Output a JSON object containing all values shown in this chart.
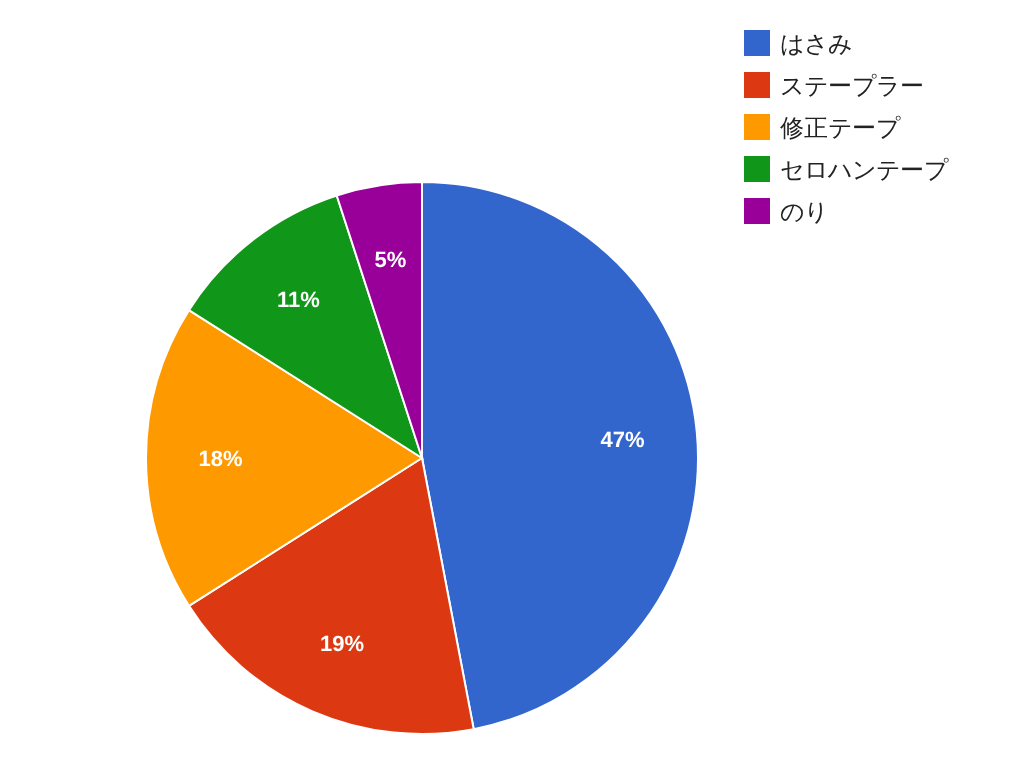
{
  "chart_data": {
    "type": "pie",
    "categories": [
      "はさみ",
      "ステープラー",
      "修正テープ",
      "セロハンテープ",
      "のり"
    ],
    "values": [
      47,
      19,
      18,
      11,
      5
    ],
    "colors": [
      "#3366cc",
      "#dc3912",
      "#ff9900",
      "#109618",
      "#990099"
    ],
    "value_labels": [
      "47%",
      "19%",
      "18%",
      "11%",
      "5%"
    ],
    "legend": "top right"
  }
}
